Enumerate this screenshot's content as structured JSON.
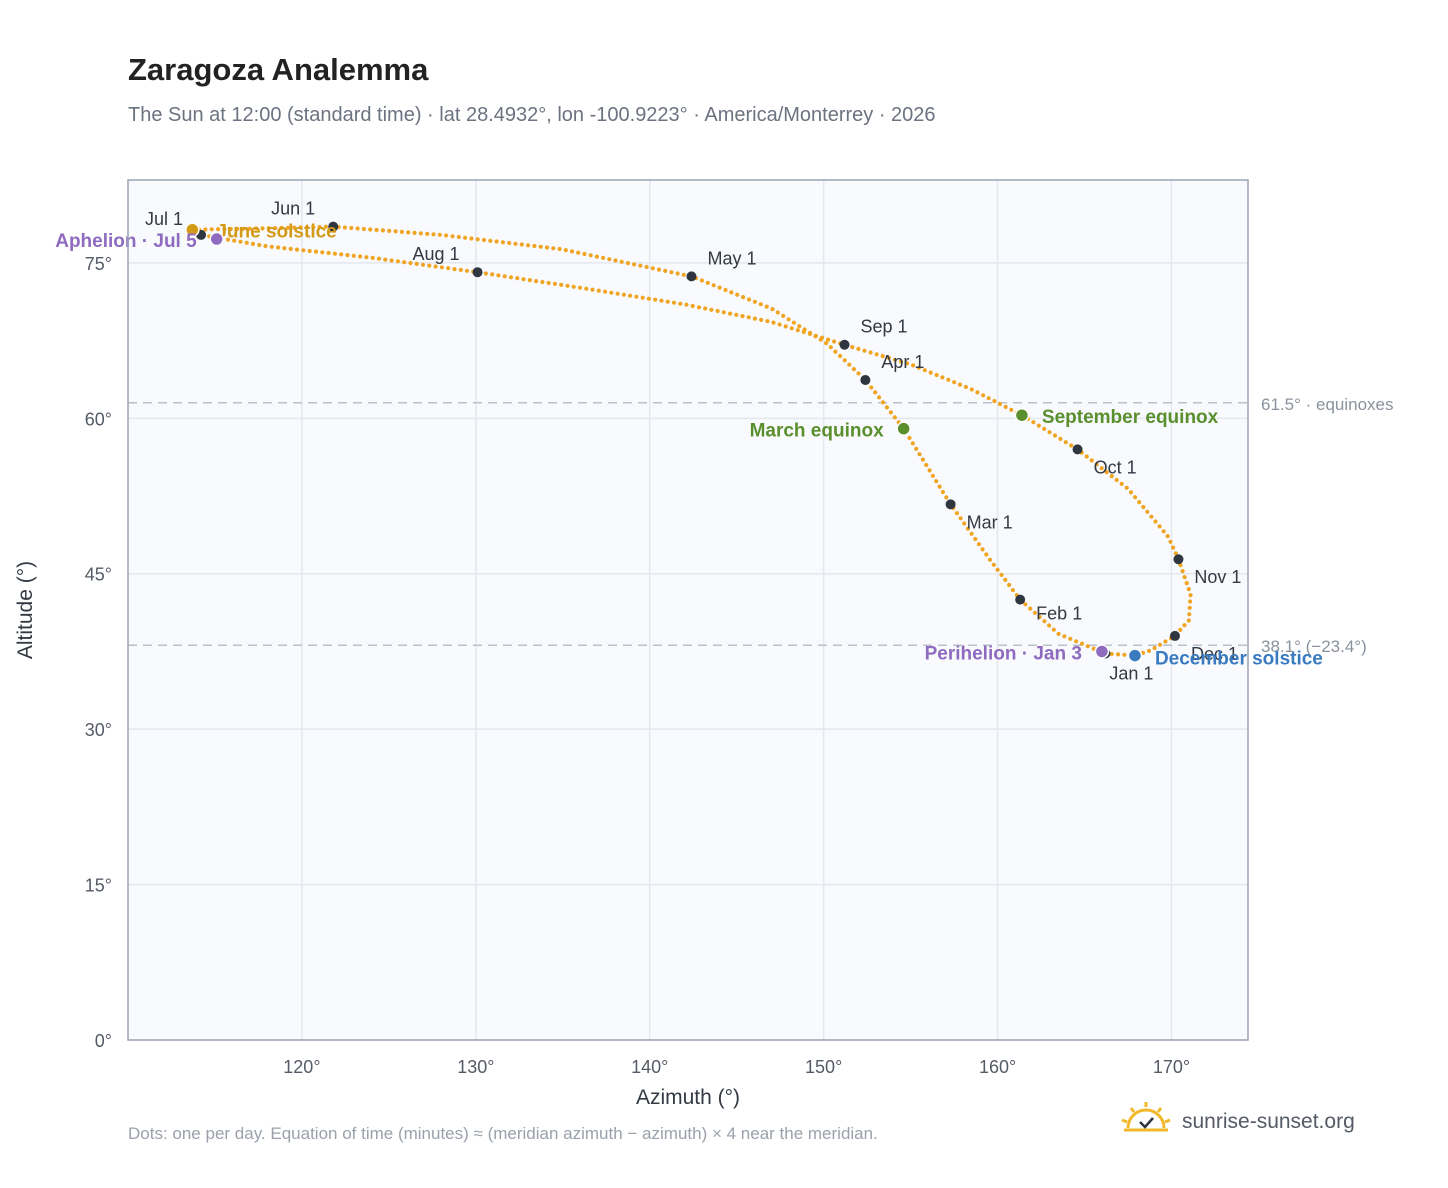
{
  "header": {
    "title": "Zaragoza Analemma",
    "subtitle": "The Sun at 12:00 (standard time) · lat 28.4932°, lon -100.9223° · America/Monterrey · 2026"
  },
  "footer": {
    "note": "Dots: one per day. Equation of time (minutes) ≈ (meridian azimuth − azimuth) × 4 near the meridian.",
    "brand": "sunrise-sunset.org"
  },
  "colors": {
    "path": "#f0a522",
    "month_marker": "#2f3640",
    "march_equinox": "#5a8f2e",
    "september_equinox": "#5a8f2e",
    "june_solstice": "#d39a18",
    "december_solstice": "#3a7bbf",
    "apsis": "#8e6bbf",
    "grid": "#e3e8ee",
    "plot_background": "#f8fafd",
    "reference_line": "#b9c2cc",
    "logo": "#f2b82a"
  },
  "chart_data": {
    "type": "scatter",
    "xlabel": "Azimuth (°)",
    "ylabel": "Altitude (°)",
    "xlim": [
      110,
      174.4
    ],
    "ylim": [
      0,
      83
    ],
    "x_ticks": [
      120,
      130,
      140,
      150,
      160,
      170
    ],
    "x_tick_labels": [
      "120°",
      "130°",
      "140°",
      "150°",
      "160°",
      "170°"
    ],
    "y_ticks": [
      0,
      15,
      30,
      45,
      60,
      75
    ],
    "y_tick_labels": [
      "0°",
      "15°",
      "30°",
      "45°",
      "60°",
      "75°"
    ],
    "grid": true,
    "reference_lines": [
      {
        "y": 61.5,
        "label": "61.5° · equinoxes"
      },
      {
        "y": 38.1,
        "label": "38.1° (−23.4°)"
      }
    ],
    "month_markers": [
      {
        "label": "Jan 1",
        "az": 166.2,
        "alt": 37.3
      },
      {
        "label": "Feb 1",
        "az": 161.3,
        "alt": 42.5
      },
      {
        "label": "Mar 1",
        "az": 157.3,
        "alt": 51.7
      },
      {
        "label": "Apr 1",
        "az": 152.4,
        "alt": 63.7
      },
      {
        "label": "May 1",
        "az": 142.4,
        "alt": 73.7
      },
      {
        "label": "Jun 1",
        "az": 121.8,
        "alt": 78.5
      },
      {
        "label": "Jul 1",
        "az": 114.2,
        "alt": 77.7
      },
      {
        "label": "Aug 1",
        "az": 130.1,
        "alt": 74.1
      },
      {
        "label": "Sep 1",
        "az": 151.2,
        "alt": 67.1
      },
      {
        "label": "Oct 1",
        "az": 164.6,
        "alt": 57.0
      },
      {
        "label": "Nov 1",
        "az": 170.4,
        "alt": 46.4
      },
      {
        "label": "Dec 1",
        "az": 170.2,
        "alt": 39.0
      }
    ],
    "events": [
      {
        "label": "March equinox",
        "az": 154.6,
        "alt": 59.0
      },
      {
        "label": "September equinox",
        "az": 161.4,
        "alt": 60.3
      },
      {
        "label": "June solstice",
        "az": 113.7,
        "alt": 78.2
      },
      {
        "label": "December solstice",
        "az": 167.9,
        "alt": 37.1
      },
      {
        "label": "Perihelion · Jan 3",
        "az": 166.0,
        "alt": 37.5
      },
      {
        "label": "Aphelion · Jul 5",
        "az": 115.1,
        "alt": 77.3
      }
    ],
    "curve_key_points": [
      [
        166.2,
        37.3
      ],
      [
        163.5,
        39.2
      ],
      [
        161.3,
        42.5
      ],
      [
        159.5,
        46.5
      ],
      [
        157.3,
        51.7
      ],
      [
        154.6,
        59.0
      ],
      [
        152.4,
        63.7
      ],
      [
        150.2,
        67.2
      ],
      [
        147.0,
        70.6
      ],
      [
        142.4,
        73.7
      ],
      [
        135.0,
        76.3
      ],
      [
        128.0,
        77.7
      ],
      [
        121.8,
        78.5
      ],
      [
        117.0,
        78.3
      ],
      [
        113.5,
        78.2
      ],
      [
        114.2,
        77.7
      ],
      [
        118.0,
        76.6
      ],
      [
        124.0,
        75.5
      ],
      [
        130.1,
        74.1
      ],
      [
        136.0,
        72.6
      ],
      [
        142.0,
        71.0
      ],
      [
        147.0,
        69.3
      ],
      [
        151.2,
        67.1
      ],
      [
        155.0,
        65.2
      ],
      [
        158.5,
        62.8
      ],
      [
        161.4,
        60.3
      ],
      [
        164.6,
        57.0
      ],
      [
        167.5,
        53.2
      ],
      [
        169.8,
        48.6
      ],
      [
        170.4,
        46.4
      ],
      [
        171.1,
        43.0
      ],
      [
        171.0,
        40.5
      ],
      [
        170.2,
        39.0
      ],
      [
        168.8,
        37.6
      ],
      [
        167.9,
        37.1
      ],
      [
        166.2,
        37.3
      ]
    ]
  }
}
